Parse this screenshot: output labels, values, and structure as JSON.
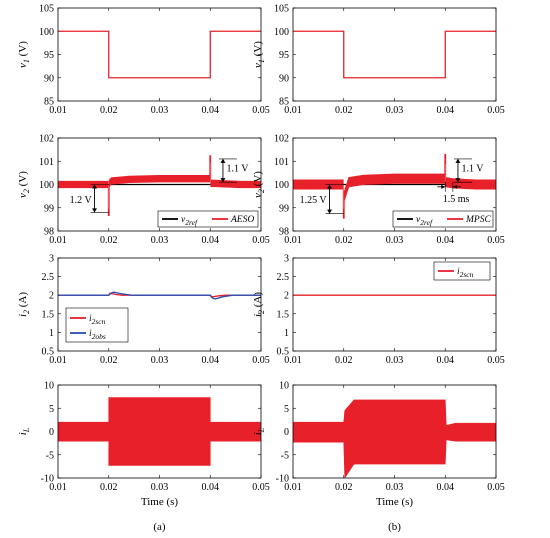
{
  "colors": {
    "red": "#e8202a",
    "black": "#000000",
    "blue": "#2a4db5"
  },
  "chart_data": [
    {
      "id": "a1",
      "type": "line",
      "col": 0,
      "row": 0,
      "ylabel": "v",
      "ylabel_sub": "1",
      "ylabel_unit": " (V)",
      "ylim": [
        85,
        105
      ],
      "yticks": [
        85,
        90,
        95,
        100,
        105
      ],
      "xlim": [
        0.01,
        0.05
      ],
      "xticks": [
        "0.01",
        "0.02",
        "0.03",
        "0.04",
        "0.05"
      ],
      "series": [
        {
          "color": "#e8202a",
          "x": [
            0.01,
            0.02,
            0.02,
            0.04,
            0.04,
            0.05
          ],
          "y": [
            100,
            100,
            90,
            90,
            100,
            100
          ]
        }
      ]
    },
    {
      "id": "b1",
      "type": "line",
      "col": 1,
      "row": 0,
      "ylabel": "v",
      "ylabel_sub": "1",
      "ylabel_unit": " (V)",
      "ylim": [
        85,
        105
      ],
      "yticks": [
        85,
        90,
        95,
        100,
        105
      ],
      "xlim": [
        0.01,
        0.05
      ],
      "xticks": [
        "0.01",
        "0.02",
        "0.03",
        "0.04",
        "0.05"
      ],
      "series": [
        {
          "color": "#e8202a",
          "x": [
            0.01,
            0.02,
            0.02,
            0.04,
            0.04,
            0.05
          ],
          "y": [
            100,
            100,
            90,
            90,
            100,
            100
          ]
        }
      ]
    },
    {
      "id": "a2",
      "type": "line",
      "col": 0,
      "row": 1,
      "ylabel": "v",
      "ylabel_sub": "2",
      "ylabel_unit": " (V)",
      "ylim": [
        98,
        102
      ],
      "yticks": [
        98,
        99,
        100,
        101,
        102
      ],
      "xlim": [
        0.01,
        0.05
      ],
      "xticks": [
        "0.01",
        "0.02",
        "0.03",
        "0.04",
        "0.05"
      ],
      "series": [
        {
          "color": "#000000",
          "x": [
            0.01,
            0.05
          ],
          "y": [
            100,
            100
          ]
        },
        {
          "color": "#e8202a",
          "band": true,
          "x": [
            0.01,
            0.0199,
            0.0199,
            0.0201,
            0.0201,
            0.0205,
            0.024,
            0.03,
            0.0399,
            0.0399,
            0.0401,
            0.0401,
            0.0405,
            0.046,
            0.05
          ],
          "y": [
            100,
            100,
            98.8,
            98.8,
            100.05,
            100.15,
            100.22,
            100.25,
            100.25,
            101.1,
            101.1,
            100.05,
            100.05,
            100,
            100
          ],
          "amp": 0.14
        }
      ],
      "legend": [
        {
          "label": "v",
          "sub": "2ref",
          "color": "#000000"
        },
        {
          "label": "AESO",
          "sub": "",
          "color": "#e8202a"
        }
      ],
      "annotations": [
        {
          "text": "1.2 V",
          "x": 0.0172,
          "y_from": 98.8,
          "y_to": 100,
          "label_x": 0.0123,
          "label_y": 99.2
        },
        {
          "text": "1.1 V",
          "x": 0.0425,
          "y_from": 100.1,
          "y_to": 101.1,
          "label_x": 0.0432,
          "label_y": 100.55
        }
      ]
    },
    {
      "id": "b2",
      "type": "line",
      "col": 1,
      "row": 1,
      "ylabel": "v",
      "ylabel_sub": "2",
      "ylabel_unit": " (V)",
      "ylim": [
        98,
        102
      ],
      "yticks": [
        98,
        99,
        100,
        101,
        102
      ],
      "xlim": [
        0.01,
        0.05
      ],
      "xticks": [
        "0.01",
        "0.02",
        "0.03",
        "0.04",
        "0.05"
      ],
      "series": [
        {
          "color": "#000000",
          "x": [
            0.01,
            0.05
          ],
          "y": [
            100,
            100
          ]
        },
        {
          "color": "#e8202a",
          "band": true,
          "x": [
            0.01,
            0.0199,
            0.0199,
            0.0201,
            0.0201,
            0.021,
            0.024,
            0.03,
            0.0399,
            0.0399,
            0.0401,
            0.0401,
            0.0415,
            0.046,
            0.05
          ],
          "y": [
            100,
            100,
            98.75,
            98.75,
            99.5,
            100.1,
            100.2,
            100.25,
            100.25,
            101.1,
            101.1,
            100.1,
            100.05,
            100,
            100
          ],
          "amp": 0.2
        }
      ],
      "legend": [
        {
          "label": "v",
          "sub": "2ref",
          "color": "#000000"
        },
        {
          "label": "MPSC",
          "sub": "",
          "color": "#e8202a"
        }
      ],
      "annotations": [
        {
          "text": "1.25 V",
          "x": 0.0172,
          "y_from": 98.75,
          "y_to": 100,
          "label_x": 0.0113,
          "label_y": 99.2
        },
        {
          "text": "1.1 V",
          "x": 0.0425,
          "y_from": 100.1,
          "y_to": 101.1,
          "label_x": 0.0432,
          "label_y": 100.55
        },
        {
          "text": "1.5 ms",
          "type": "horizontal",
          "x_from": 0.04,
          "x_to": 0.0415,
          "y": 99.9,
          "label_x": 0.0395,
          "label_y": 99.25
        }
      ]
    },
    {
      "id": "a3",
      "type": "line",
      "col": 0,
      "row": 2,
      "ylabel": "i",
      "ylabel_sub": "2",
      "ylabel_unit": " (A)",
      "ylim": [
        0.5,
        3
      ],
      "yticks": [
        0.5,
        1,
        1.5,
        2,
        2.5,
        3
      ],
      "xlim": [
        0.01,
        0.05
      ],
      "xticks": [
        "0.01",
        "0.02",
        "0.03",
        "0.04",
        "0.05"
      ],
      "series": [
        {
          "color": "#e8202a",
          "x": [
            0.01,
            0.02,
            0.0202,
            0.0215,
            0.0225,
            0.024,
            0.04,
            0.0402,
            0.0415,
            0.043,
            0.05
          ],
          "y": [
            2,
            2,
            2.05,
            2.02,
            2.0,
            2.0,
            2.0,
            1.95,
            1.98,
            2.0,
            2.0
          ]
        },
        {
          "color": "#2a4db5",
          "x": [
            0.01,
            0.02,
            0.0205,
            0.021,
            0.0225,
            0.0245,
            0.04,
            0.0405,
            0.041,
            0.0425,
            0.0445,
            0.05
          ],
          "y": [
            2,
            2,
            2.06,
            2.08,
            2.04,
            2.0,
            2.0,
            1.92,
            1.9,
            1.96,
            2.0,
            2.0
          ]
        }
      ],
      "legend": [
        {
          "label": "i",
          "sub": "2scn",
          "color": "#e8202a"
        },
        {
          "label": "i",
          "sub": "2obs",
          "color": "#2a4db5"
        }
      ]
    },
    {
      "id": "b3",
      "type": "line",
      "col": 1,
      "row": 2,
      "ylabel": "i",
      "ylabel_sub": "2",
      "ylabel_unit": " (A)",
      "ylim": [
        0.5,
        3
      ],
      "yticks": [
        0.5,
        1,
        1.5,
        2,
        2.5,
        3
      ],
      "xlim": [
        0.01,
        0.05
      ],
      "xticks": [
        "0.01",
        "0.02",
        "0.03",
        "0.04",
        "0.05"
      ],
      "series": [
        {
          "color": "#e8202a",
          "x": [
            0.01,
            0.05
          ],
          "y": [
            2,
            2
          ]
        }
      ],
      "legend": [
        {
          "label": "i",
          "sub": "2scn",
          "color": "#e8202a"
        }
      ]
    },
    {
      "id": "a4",
      "type": "area",
      "col": 0,
      "row": 3,
      "ylabel": "i",
      "ylabel_sub": "L",
      "ylabel_unit": "",
      "ylim": [
        -10,
        10
      ],
      "yticks": [
        -10,
        -5,
        0,
        5,
        10
      ],
      "xlim": [
        0.01,
        0.05
      ],
      "xticks": [
        "0.01",
        "0.02",
        "0.03",
        "0.04",
        "0.05"
      ],
      "xlabel": "Time (s)",
      "series": [
        {
          "color": "#e8202a",
          "band": true,
          "x": [
            0.01,
            0.02,
            0.02,
            0.04,
            0.04,
            0.05
          ],
          "upper": [
            2,
            2,
            7.3,
            7.3,
            2,
            2
          ],
          "lower": [
            -2.1,
            -2.1,
            -7.3,
            -7.3,
            -2.1,
            -2.1
          ]
        }
      ],
      "panel_label": "(a)"
    },
    {
      "id": "b4",
      "type": "area",
      "col": 1,
      "row": 3,
      "ylabel": "i",
      "ylabel_sub": "L",
      "ylabel_unit": "",
      "ylim": [
        -10,
        10
      ],
      "yticks": [
        -10,
        -5,
        0,
        5,
        10
      ],
      "xlim": [
        0.01,
        0.05
      ],
      "xticks": [
        "0.01",
        "0.02",
        "0.03",
        "0.04",
        "0.05"
      ],
      "xlabel": "Time (s)",
      "series": [
        {
          "color": "#e8202a",
          "band": true,
          "x": [
            0.01,
            0.02,
            0.0202,
            0.022,
            0.04,
            0.0402,
            0.042,
            0.05
          ],
          "upper": [
            2,
            2,
            4.5,
            6.8,
            6.8,
            1.3,
            1.8,
            1.8
          ],
          "lower": [
            -2.3,
            -2.3,
            -10,
            -7,
            -7,
            -1.8,
            -2.1,
            -2.1
          ]
        }
      ],
      "panel_label": "(b)"
    }
  ]
}
